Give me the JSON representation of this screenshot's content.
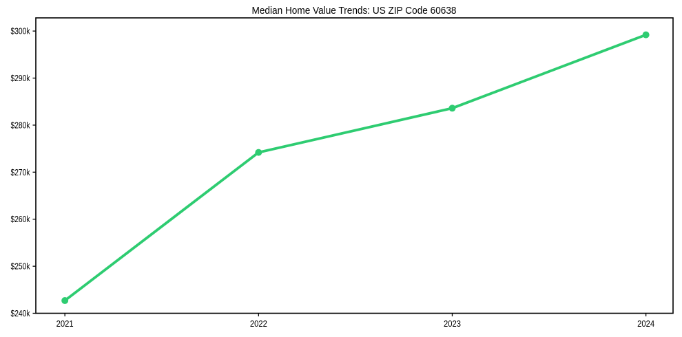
{
  "chart_data": {
    "type": "line",
    "title": "Median Home Value Trends: US ZIP Code 60638",
    "x": [
      2021,
      2022,
      2023,
      2024
    ],
    "values": [
      242700,
      274200,
      283600,
      299200
    ],
    "xtick_labels": [
      "2021",
      "2022",
      "2023",
      "2024"
    ],
    "ytick_values": [
      240000,
      250000,
      260000,
      270000,
      280000,
      290000,
      300000
    ],
    "ytick_labels": [
      "$240k",
      "$250k",
      "$260k",
      "$270k",
      "$280k",
      "$290k",
      "$300k"
    ],
    "xlim": [
      2020.85,
      2024.14
    ],
    "ylim": [
      240000,
      302800
    ],
    "xlabel": "",
    "ylabel": "",
    "grid": false,
    "legend": "none",
    "line_color": "#2ecc71",
    "axis_color": "#000000",
    "background_color": "#ffffff"
  }
}
